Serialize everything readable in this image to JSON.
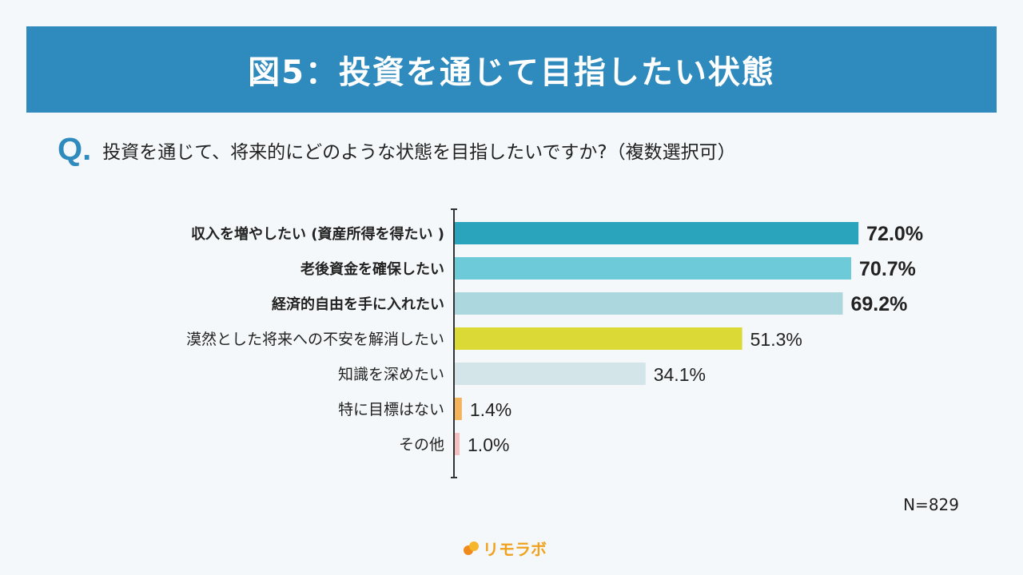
{
  "title": "図5：投資を通じて目指したい状態",
  "question": {
    "mark": "Q.",
    "text": "投資を通じて、将来的にどのような状態を目指したいですか?（複数選択可）"
  },
  "note": "N=829",
  "logo": "リモラボ",
  "chart_data": {
    "type": "bar",
    "orientation": "horizontal",
    "unit": "%",
    "categories": [
      "収入を増やしたい (資産所得を得たい )",
      "老後資金を確保したい",
      "経済的自由を手に入れたい",
      "漠然とした将来への不安を解消したい",
      "知識を深めたい",
      "特に目標はない",
      "その他"
    ],
    "values": [
      72.0,
      70.7,
      69.2,
      51.3,
      34.1,
      1.4,
      1.0
    ],
    "labels": [
      "72.0%",
      "70.7%",
      "69.2%",
      "51.3%",
      "34.1%",
      "1.4%",
      "1.0%"
    ],
    "colors": [
      "#29a4bc",
      "#6dcad8",
      "#acd7de",
      "#dad935",
      "#d3e5e9",
      "#f4b25a",
      "#f4c0c0"
    ],
    "bold": [
      true,
      true,
      true,
      false,
      false,
      false,
      false
    ],
    "grid": false
  }
}
